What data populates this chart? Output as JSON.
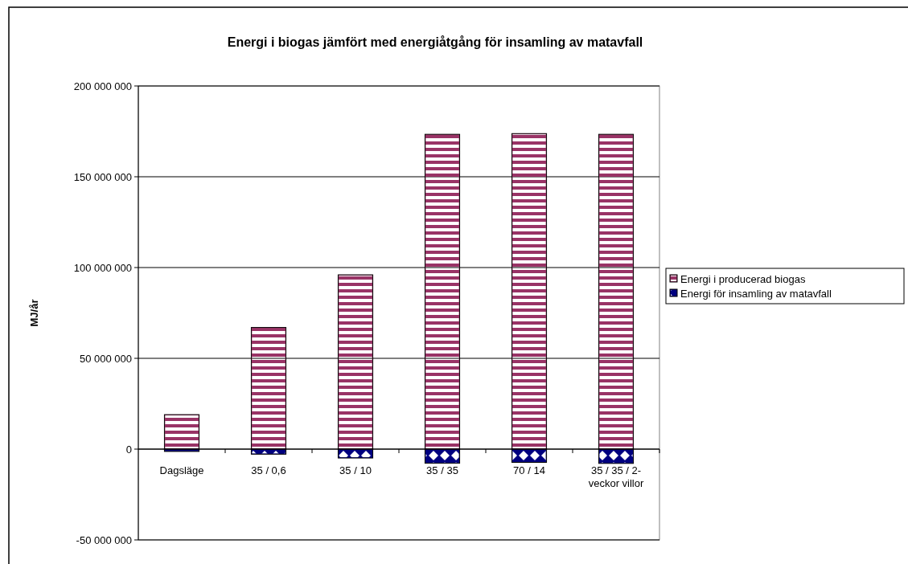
{
  "chart_data": {
    "type": "bar",
    "title": "Energi i biogas jämfört med energiåtgång för insamling av matavfall",
    "ylabel": "MJ/år",
    "categories": [
      "Dagsläge",
      "35 / 0,6",
      "35 / 10",
      "35 / 35",
      "70 / 14",
      "35 / 35 / 2-veckor villor"
    ],
    "series": [
      {
        "name": "Energi i producerad biogas",
        "color": "#993366",
        "values": [
          19000000,
          67000000,
          96000000,
          173400000,
          173800000,
          173400000
        ]
      },
      {
        "name": "Energi för insamling av matavfall",
        "color": "#000080",
        "values": [
          -1300000,
          -2800000,
          -4900000,
          -7800000,
          -7300000,
          -7900000
        ]
      }
    ],
    "stacked": true,
    "ylim": [
      -50000000,
      200000000
    ],
    "yticks": [
      {
        "value": -50000000,
        "label": "-50 000 000"
      },
      {
        "value": 0,
        "label": "0"
      },
      {
        "value": 50000000,
        "label": "50 000 000"
      },
      {
        "value": 100000000,
        "label": "100 000 000"
      },
      {
        "value": 150000000,
        "label": "150 000 000"
      },
      {
        "value": 200000000,
        "label": "200 000 000"
      }
    ],
    "grid": "y",
    "legend": "right"
  }
}
